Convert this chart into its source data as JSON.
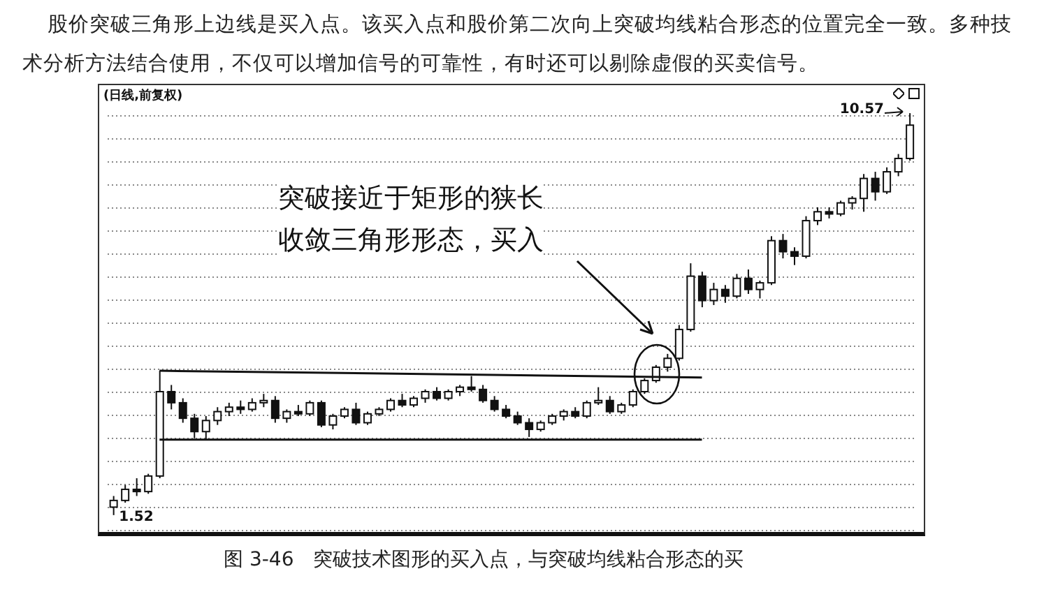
{
  "chart_data": {
    "type": "candlestick",
    "title": "图 3-46　突破技术图形的买入点，与突破均线粘合形态的买",
    "subtitle": "(日线,前复权)",
    "annotations": [
      "股价突破三角形上边线是买入点。该买入点和股价第二次向上突破均线粘合形态的位置完全一致。多种技术分析方法结合使用，不仅可以增加信号的可靠性，有时还可以剔除虚假的买卖信号。",
      "突破接近于矩形的狭长",
      "收敛三角形形态，买入",
      "10.57",
      "1.52"
    ],
    "color": "#111111",
    "grid": "y",
    "tick_labels": false,
    "categories": [
      null,
      null,
      null,
      null,
      null,
      null,
      null,
      null,
      null,
      null,
      null,
      null,
      null,
      null,
      null,
      null,
      null,
      null,
      null,
      null,
      null,
      null,
      null,
      null,
      null,
      null,
      null,
      null,
      null,
      null,
      null,
      null,
      null,
      null,
      null,
      null,
      null,
      null,
      null,
      null,
      null,
      null,
      null,
      null,
      null,
      null,
      null,
      null,
      null,
      null,
      null,
      null,
      null,
      null,
      null,
      null,
      null,
      null,
      null,
      null,
      null,
      null,
      null,
      null,
      null,
      null,
      null,
      null,
      null,
      null
    ],
    "ohlc": [
      [
        1.7,
        1.95,
        1.52,
        1.85
      ],
      [
        1.85,
        2.2,
        1.8,
        2.1
      ],
      [
        2.1,
        2.35,
        1.95,
        2.05
      ],
      [
        2.05,
        2.45,
        2.0,
        2.4
      ],
      [
        2.4,
        4.77,
        2.35,
        4.3
      ],
      [
        4.3,
        4.45,
        3.9,
        4.05
      ],
      [
        4.05,
        4.15,
        3.6,
        3.7
      ],
      [
        3.7,
        3.8,
        3.25,
        3.4
      ],
      [
        3.4,
        3.75,
        3.22,
        3.65
      ],
      [
        3.65,
        3.95,
        3.55,
        3.85
      ],
      [
        3.85,
        4.05,
        3.75,
        3.95
      ],
      [
        3.95,
        4.1,
        3.8,
        3.9
      ],
      [
        3.9,
        4.15,
        3.85,
        4.05
      ],
      [
        4.05,
        4.25,
        3.95,
        4.1
      ],
      [
        4.1,
        4.2,
        3.6,
        3.7
      ],
      [
        3.7,
        3.9,
        3.6,
        3.85
      ],
      [
        3.85,
        4.0,
        3.75,
        3.8
      ],
      [
        3.8,
        4.1,
        3.75,
        4.05
      ],
      [
        4.05,
        4.1,
        3.5,
        3.55
      ],
      [
        3.55,
        3.8,
        3.45,
        3.75
      ],
      [
        3.75,
        3.95,
        3.7,
        3.9
      ],
      [
        3.9,
        4.05,
        3.55,
        3.6
      ],
      [
        3.6,
        3.85,
        3.55,
        3.8
      ],
      [
        3.8,
        3.95,
        3.75,
        3.9
      ],
      [
        3.9,
        4.15,
        3.85,
        4.1
      ],
      [
        4.1,
        4.25,
        3.95,
        4.0
      ],
      [
        4.0,
        4.2,
        3.95,
        4.15
      ],
      [
        4.15,
        4.35,
        4.05,
        4.3
      ],
      [
        4.3,
        4.4,
        4.1,
        4.15
      ],
      [
        4.15,
        4.35,
        4.1,
        4.3
      ],
      [
        4.3,
        4.45,
        4.2,
        4.4
      ],
      [
        4.4,
        4.65,
        4.3,
        4.35
      ],
      [
        4.35,
        4.45,
        4.05,
        4.1
      ],
      [
        4.1,
        4.2,
        3.85,
        3.9
      ],
      [
        3.9,
        4.0,
        3.7,
        3.75
      ],
      [
        3.75,
        3.85,
        3.55,
        3.6
      ],
      [
        3.6,
        3.7,
        3.28,
        3.45
      ],
      [
        3.45,
        3.65,
        3.4,
        3.6
      ],
      [
        3.6,
        3.8,
        3.55,
        3.75
      ],
      [
        3.75,
        3.9,
        3.65,
        3.85
      ],
      [
        3.85,
        3.95,
        3.7,
        3.75
      ],
      [
        3.75,
        4.1,
        3.7,
        4.05
      ],
      [
        4.05,
        4.4,
        4.0,
        4.1
      ],
      [
        4.1,
        4.2,
        3.8,
        3.85
      ],
      [
        3.85,
        4.05,
        3.8,
        4.0
      ],
      [
        4.0,
        4.35,
        3.95,
        4.3
      ],
      [
        4.3,
        4.6,
        4.25,
        4.55
      ],
      [
        4.55,
        4.9,
        4.5,
        4.85
      ],
      [
        4.85,
        5.15,
        4.75,
        5.05
      ],
      [
        5.05,
        5.8,
        5.0,
        5.7
      ],
      [
        5.7,
        7.19,
        5.65,
        6.9
      ],
      [
        6.9,
        7.0,
        6.2,
        6.35
      ],
      [
        6.35,
        6.75,
        6.25,
        6.6
      ],
      [
        6.6,
        6.7,
        6.3,
        6.45
      ],
      [
        6.45,
        6.95,
        6.4,
        6.85
      ],
      [
        6.85,
        7.05,
        6.5,
        6.6
      ],
      [
        6.6,
        6.8,
        6.4,
        6.75
      ],
      [
        6.75,
        7.8,
        6.7,
        7.7
      ],
      [
        7.7,
        7.85,
        7.3,
        7.45
      ],
      [
        7.45,
        7.55,
        7.15,
        7.35
      ],
      [
        7.35,
        8.25,
        7.3,
        8.15
      ],
      [
        8.15,
        8.45,
        8.05,
        8.35
      ],
      [
        8.35,
        8.45,
        8.2,
        8.3
      ],
      [
        8.3,
        8.6,
        8.25,
        8.55
      ],
      [
        8.55,
        8.7,
        8.4,
        8.65
      ],
      [
        8.65,
        9.2,
        8.35,
        9.1
      ],
      [
        9.1,
        9.25,
        8.6,
        8.8
      ],
      [
        8.8,
        9.35,
        8.75,
        9.25
      ],
      [
        9.25,
        9.65,
        9.15,
        9.55
      ],
      [
        9.55,
        10.57,
        9.5,
        10.3
      ]
    ],
    "series": [
      {
        "type": "line",
        "color": "#111111",
        "values": [
          null,
          null,
          null,
          null,
          4.77,
          null,
          null,
          null,
          null,
          null,
          null,
          null,
          null,
          null,
          null,
          null,
          null,
          null,
          null,
          null,
          null,
          null,
          null,
          null,
          null,
          null,
          null,
          null,
          null,
          null,
          null,
          null,
          null,
          null,
          null,
          null,
          null,
          null,
          null,
          null,
          null,
          null,
          null,
          null,
          null,
          null,
          null,
          null,
          null,
          null,
          null,
          4.62,
          null,
          null,
          null,
          null,
          null,
          null,
          null,
          null,
          null,
          null,
          null,
          null,
          null,
          null,
          null,
          null,
          null,
          null
        ]
      },
      {
        "type": "line",
        "color": "#111111",
        "values": [
          null,
          null,
          null,
          null,
          3.22,
          null,
          null,
          null,
          null,
          null,
          null,
          null,
          null,
          null,
          null,
          null,
          null,
          null,
          null,
          null,
          null,
          null,
          null,
          null,
          null,
          null,
          null,
          null,
          null,
          null,
          null,
          null,
          null,
          null,
          null,
          null,
          null,
          null,
          null,
          null,
          null,
          null,
          null,
          null,
          null,
          null,
          null,
          null,
          null,
          null,
          null,
          3.22,
          null,
          null,
          null,
          null,
          null,
          null,
          null,
          null,
          null,
          null,
          null,
          null,
          null,
          null,
          null,
          null,
          null,
          null
        ]
      }
    ]
  }
}
